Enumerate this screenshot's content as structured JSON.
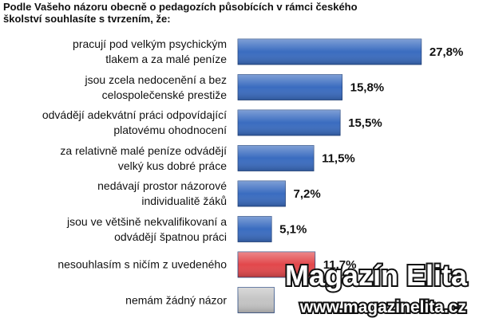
{
  "chart_data": {
    "type": "bar",
    "orientation": "horizontal",
    "title": "Podle Vašeho názoru obecně o pedagozích působících v rámci českého\nškolství souhlasíte s tvrzením, že:",
    "categories": [
      "pracují pod velkým psychickým\ntlakem a za malé peníze",
      "jsou zcela nedocenění a bez\ncelospolečenské prestiže",
      "odvádějí adekvátní práci odpovídající\nplatovému ohodnocení",
      "za relativně malé peníze odvádějí\nvelký kus dobré práce",
      "nedávají prostor názorové\nindividualitě žáků",
      "jsou ve většině nekvalifikovaní a\nodvádějí špatnou práci",
      "nesouhlasím s ničím z uvedeného",
      "nemám žádný názor"
    ],
    "values": [
      27.8,
      15.8,
      15.5,
      11.5,
      7.2,
      5.1,
      11.7,
      5.5
    ],
    "value_labels": [
      "27,8%",
      "15,8%",
      "15,5%",
      "11,5%",
      "7,2%",
      "5,1%",
      "11,7%",
      null
    ],
    "colors": [
      "#3a6cc0",
      "#3a6cc0",
      "#3a6cc0",
      "#3a6cc0",
      "#3a6cc0",
      "#3a6cc0",
      "#e2474b",
      "#c4c4c4"
    ],
    "xlim": [
      0,
      30
    ]
  },
  "watermark": {
    "title": "Magazín Elita",
    "url": "www.magazinelita.cz"
  }
}
